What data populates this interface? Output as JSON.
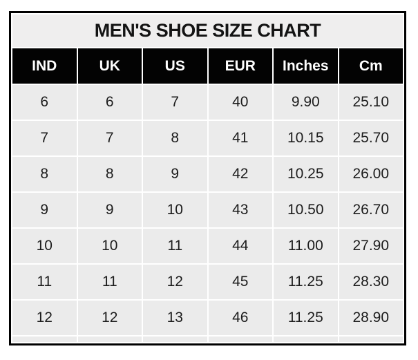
{
  "title": "MEN'S SHOE SIZE CHART",
  "chart_data": {
    "type": "table",
    "title": "MEN'S SHOE SIZE CHART",
    "columns": [
      "IND",
      "UK",
      "US",
      "EUR",
      "Inches",
      "Cm"
    ],
    "rows": [
      [
        "6",
        "6",
        "7",
        "40",
        "9.90",
        "25.10"
      ],
      [
        "7",
        "7",
        "8",
        "41",
        "10.15",
        "25.70"
      ],
      [
        "8",
        "8",
        "9",
        "42",
        "10.25",
        "26.00"
      ],
      [
        "9",
        "9",
        "10",
        "43",
        "10.50",
        "26.70"
      ],
      [
        "10",
        "10",
        "11",
        "44",
        "11.00",
        "27.90"
      ],
      [
        "11",
        "11",
        "12",
        "45",
        "11.25",
        "28.30"
      ],
      [
        "12",
        "12",
        "13",
        "46",
        "11.25",
        "28.90"
      ]
    ]
  },
  "colors": {
    "border": "#000000",
    "title-bg": "#efeeee",
    "title-text": "#141414",
    "header-bg": "#030303",
    "header-text": "#ffffff",
    "cell-bg": "#ebebeb",
    "cell-text": "#1c1c1c"
  }
}
